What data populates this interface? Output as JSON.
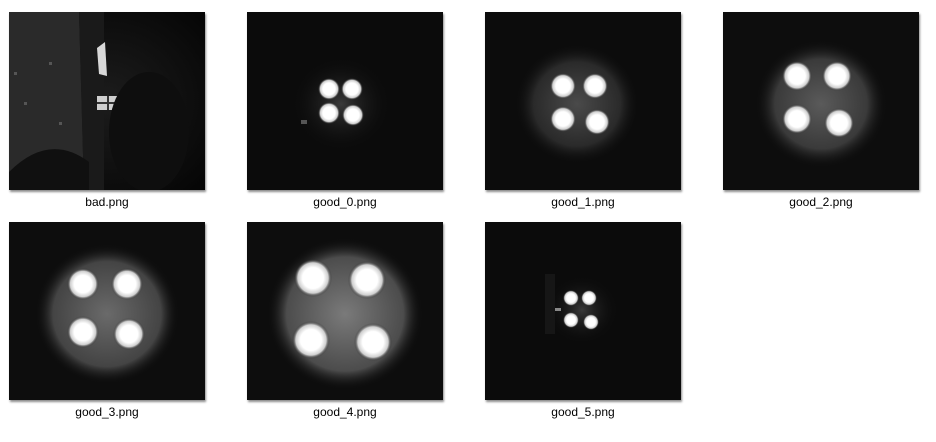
{
  "files": [
    {
      "name": "bad.png",
      "icon": "image-thumbnail-dark-room"
    },
    {
      "name": "good_0.png",
      "icon": "image-thumbnail-four-lights"
    },
    {
      "name": "good_1.png",
      "icon": "image-thumbnail-four-lights"
    },
    {
      "name": "good_2.png",
      "icon": "image-thumbnail-four-lights"
    },
    {
      "name": "good_3.png",
      "icon": "image-thumbnail-four-lights"
    },
    {
      "name": "good_4.png",
      "icon": "image-thumbnail-four-lights"
    },
    {
      "name": "good_5.png",
      "icon": "image-thumbnail-four-lights"
    }
  ]
}
